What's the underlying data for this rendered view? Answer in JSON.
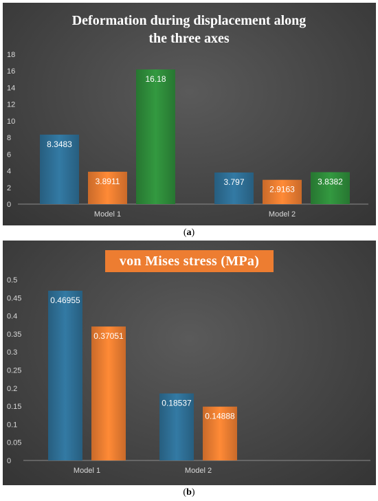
{
  "figure": {
    "label_a_open": "(",
    "label_a_letter": "a",
    "label_a_close": ")",
    "label_b_open": "(",
    "label_b_letter": "b",
    "label_b_close": ")"
  },
  "colors": {
    "blue": "#2e6f95",
    "orange": "#ed7d31",
    "green": "#2e8b3a"
  },
  "chart_data": [
    {
      "type": "bar",
      "title_line1": "Deformation during displacement   along",
      "title_line2": "the  three axes",
      "categories": [
        "Model 1",
        "Model 2"
      ],
      "series": [
        {
          "values": [
            8.3483,
            3.797
          ],
          "labels": [
            "8.3483",
            "3.797"
          ],
          "color": "#2e6f95"
        },
        {
          "values": [
            3.8911,
            2.9163
          ],
          "labels": [
            "3.8911",
            "2.9163"
          ],
          "color": "#ed7d31"
        },
        {
          "values": [
            16.18,
            3.8382
          ],
          "labels": [
            "16.18",
            "3.8382"
          ],
          "color": "#2e8b3a"
        }
      ],
      "ylim": [
        0,
        18
      ],
      "yticks": [
        "0",
        "2",
        "4",
        "6",
        "8",
        "10",
        "12",
        "14",
        "16",
        "18"
      ],
      "grid": false
    },
    {
      "type": "bar",
      "title": "von Mises stress (MPa)",
      "categories": [
        "Model 1",
        "Model 2"
      ],
      "series": [
        {
          "values": [
            0.46955,
            0.18537
          ],
          "labels": [
            "0.46955",
            "0.18537"
          ],
          "color": "#2e6f95"
        },
        {
          "values": [
            0.37051,
            0.14888
          ],
          "labels": [
            "0.37051",
            "0.14888"
          ],
          "color": "#ed7d31"
        }
      ],
      "ylim": [
        0,
        0.5
      ],
      "yticks": [
        "0",
        "0.05",
        "0.1",
        "0.15",
        "0.2",
        "0.25",
        "0.3",
        "0.35",
        "0.4",
        "0.45",
        "0.5"
      ],
      "grid": false
    }
  ]
}
